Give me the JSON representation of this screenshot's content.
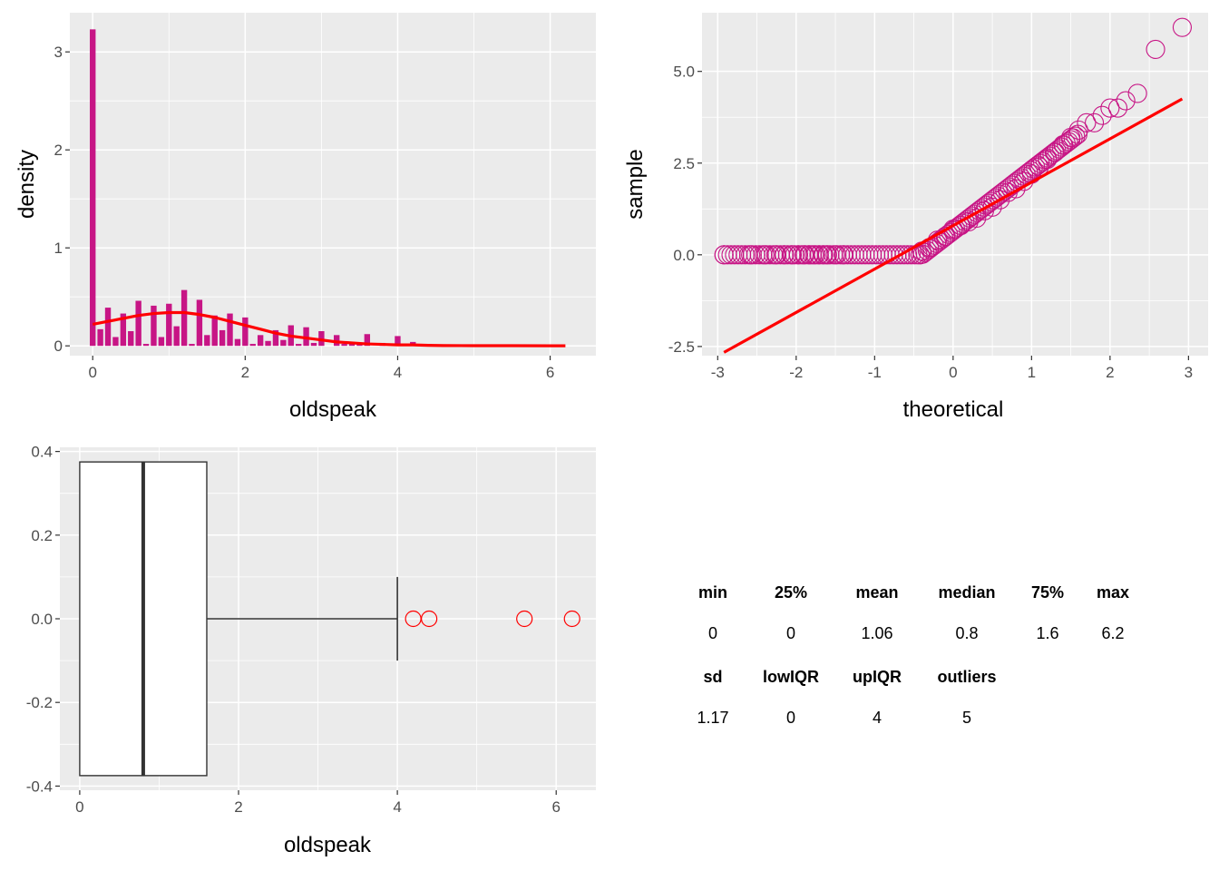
{
  "colors": {
    "panel_bg": "#ebebeb",
    "grid": "#ffffff",
    "bar_fill": "#c71585",
    "density_line": "#ff0000",
    "qq_point": "#c71585",
    "qq_line": "#ff0000",
    "outlier": "#ff0000"
  },
  "chart_data": [
    {
      "type": "bar",
      "subtype": "histogram-with-density",
      "xlabel": "oldspeak",
      "ylabel": "density",
      "xlim": [
        -0.3,
        6.6
      ],
      "ylim": [
        -0.1,
        3.4
      ],
      "xticks": [
        "0",
        "2",
        "4",
        "6"
      ],
      "yticks": [
        "0",
        "1",
        "2",
        "3"
      ],
      "bin_width": 0.1,
      "bins": [
        {
          "x": 0.0,
          "y": 3.23
        },
        {
          "x": 0.1,
          "y": 0.17
        },
        {
          "x": 0.2,
          "y": 0.39
        },
        {
          "x": 0.3,
          "y": 0.09
        },
        {
          "x": 0.4,
          "y": 0.33
        },
        {
          "x": 0.5,
          "y": 0.15
        },
        {
          "x": 0.6,
          "y": 0.46
        },
        {
          "x": 0.7,
          "y": 0.02
        },
        {
          "x": 0.8,
          "y": 0.41
        },
        {
          "x": 0.9,
          "y": 0.09
        },
        {
          "x": 1.0,
          "y": 0.43
        },
        {
          "x": 1.1,
          "y": 0.2
        },
        {
          "x": 1.2,
          "y": 0.57
        },
        {
          "x": 1.3,
          "y": 0.02
        },
        {
          "x": 1.4,
          "y": 0.47
        },
        {
          "x": 1.5,
          "y": 0.11
        },
        {
          "x": 1.6,
          "y": 0.31
        },
        {
          "x": 1.7,
          "y": 0.16
        },
        {
          "x": 1.8,
          "y": 0.33
        },
        {
          "x": 1.9,
          "y": 0.07
        },
        {
          "x": 2.0,
          "y": 0.29
        },
        {
          "x": 2.1,
          "y": 0.02
        },
        {
          "x": 2.2,
          "y": 0.11
        },
        {
          "x": 2.3,
          "y": 0.05
        },
        {
          "x": 2.4,
          "y": 0.16
        },
        {
          "x": 2.5,
          "y": 0.06
        },
        {
          "x": 2.6,
          "y": 0.21
        },
        {
          "x": 2.7,
          "y": 0.02
        },
        {
          "x": 2.8,
          "y": 0.19
        },
        {
          "x": 2.9,
          "y": 0.03
        },
        {
          "x": 3.0,
          "y": 0.15
        },
        {
          "x": 3.1,
          "y": 0.0
        },
        {
          "x": 3.2,
          "y": 0.11
        },
        {
          "x": 3.3,
          "y": 0.02
        },
        {
          "x": 3.4,
          "y": 0.04
        },
        {
          "x": 3.5,
          "y": 0.02
        },
        {
          "x": 3.6,
          "y": 0.12
        },
        {
          "x": 3.7,
          "y": 0.0
        },
        {
          "x": 3.8,
          "y": 0.03
        },
        {
          "x": 3.9,
          "y": 0.0
        },
        {
          "x": 4.0,
          "y": 0.1
        },
        {
          "x": 4.1,
          "y": 0.0
        },
        {
          "x": 4.2,
          "y": 0.04
        },
        {
          "x": 4.4,
          "y": 0.02
        }
      ],
      "density_curve": [
        [
          0.0,
          0.22
        ],
        [
          0.2,
          0.25
        ],
        [
          0.4,
          0.28
        ],
        [
          0.6,
          0.31
        ],
        [
          0.8,
          0.33
        ],
        [
          1.0,
          0.34
        ],
        [
          1.2,
          0.34
        ],
        [
          1.4,
          0.32
        ],
        [
          1.6,
          0.29
        ],
        [
          1.8,
          0.25
        ],
        [
          2.0,
          0.21
        ],
        [
          2.2,
          0.17
        ],
        [
          2.4,
          0.13
        ],
        [
          2.6,
          0.1
        ],
        [
          2.8,
          0.08
        ],
        [
          3.0,
          0.06
        ],
        [
          3.2,
          0.04
        ],
        [
          3.4,
          0.03
        ],
        [
          3.6,
          0.02
        ],
        [
          3.8,
          0.015
        ],
        [
          4.0,
          0.01
        ],
        [
          4.2,
          0.01
        ],
        [
          4.4,
          0.005
        ],
        [
          4.6,
          0.003
        ],
        [
          5.0,
          0.002
        ],
        [
          5.5,
          0.002
        ],
        [
          6.0,
          0.001
        ],
        [
          6.2,
          0.001
        ]
      ]
    },
    {
      "type": "scatter",
      "subtype": "qq-plot",
      "xlabel": "theoretical",
      "ylabel": "sample",
      "xlim": [
        -3.2,
        3.25
      ],
      "ylim": [
        -2.75,
        6.6
      ],
      "xticks": [
        "-3",
        "-2",
        "-1",
        "0",
        "1",
        "2",
        "3"
      ],
      "yticks": [
        "-2.5",
        "0.0",
        "2.5",
        "5.0"
      ],
      "reference_line": {
        "x": [
          -2.92,
          2.92
        ],
        "y": [
          -2.66,
          4.25
        ]
      },
      "zero_run": {
        "x_from": -2.92,
        "x_to": -0.45,
        "y": 0.0
      },
      "points": [
        [
          -2.92,
          0.0
        ],
        [
          -2.58,
          0.0
        ],
        [
          -2.4,
          0.0
        ],
        [
          -2.26,
          0.0
        ],
        [
          -2.15,
          0.0
        ],
        [
          -2.05,
          0.0
        ],
        [
          -1.97,
          0.0
        ],
        [
          -1.9,
          0.0
        ],
        [
          -1.83,
          0.0
        ],
        [
          -1.77,
          0.0
        ],
        [
          -1.71,
          0.0
        ],
        [
          -1.65,
          0.0
        ],
        [
          -1.6,
          0.0
        ],
        [
          -1.5,
          0.0
        ],
        [
          -1.4,
          0.0
        ],
        [
          -0.4,
          0.1
        ],
        [
          -0.3,
          0.2
        ],
        [
          -0.2,
          0.4
        ],
        [
          -0.1,
          0.5
        ],
        [
          0.0,
          0.7
        ],
        [
          0.1,
          0.8
        ],
        [
          0.2,
          0.9
        ],
        [
          0.3,
          1.0
        ],
        [
          0.4,
          1.2
        ],
        [
          0.5,
          1.3
        ],
        [
          0.6,
          1.5
        ],
        [
          0.7,
          1.7
        ],
        [
          0.8,
          1.8
        ],
        [
          0.9,
          2.0
        ],
        [
          1.0,
          2.2
        ],
        [
          1.1,
          2.4
        ],
        [
          1.2,
          2.6
        ],
        [
          1.3,
          2.8
        ],
        [
          1.4,
          3.0
        ],
        [
          1.5,
          3.2
        ],
        [
          1.6,
          3.4
        ],
        [
          1.7,
          3.6
        ],
        [
          1.8,
          3.6
        ],
        [
          1.9,
          3.8
        ],
        [
          2.0,
          4.0
        ],
        [
          2.1,
          4.0
        ],
        [
          2.2,
          4.2
        ],
        [
          2.35,
          4.4
        ],
        [
          2.58,
          5.6
        ],
        [
          2.92,
          6.2
        ]
      ]
    },
    {
      "type": "box",
      "xlabel": "oldspeak",
      "ylabel": "",
      "xlim": [
        -0.25,
        6.5
      ],
      "ylim": [
        -0.41,
        0.41
      ],
      "xticks": [
        "0",
        "2",
        "4",
        "6"
      ],
      "yticks": [
        "-0.4",
        "-0.2",
        "0.0",
        "0.2",
        "0.4"
      ],
      "box": {
        "min": 0,
        "q1": 0,
        "median": 0.8,
        "q3": 1.6,
        "whisker_high": 4.0,
        "half_height": 0.375
      },
      "outliers": [
        4.2,
        4.4,
        5.6,
        6.2
      ]
    }
  ],
  "stats_table": {
    "header1": [
      "min",
      "25%",
      "mean",
      "median",
      "75%",
      "max"
    ],
    "row1": [
      "0",
      "0",
      "1.06",
      "0.8",
      "1.6",
      "6.2"
    ],
    "header2": [
      "sd",
      "lowIQR",
      "upIQR",
      "outliers"
    ],
    "row2": [
      "1.17",
      "0",
      "4",
      "5"
    ]
  }
}
